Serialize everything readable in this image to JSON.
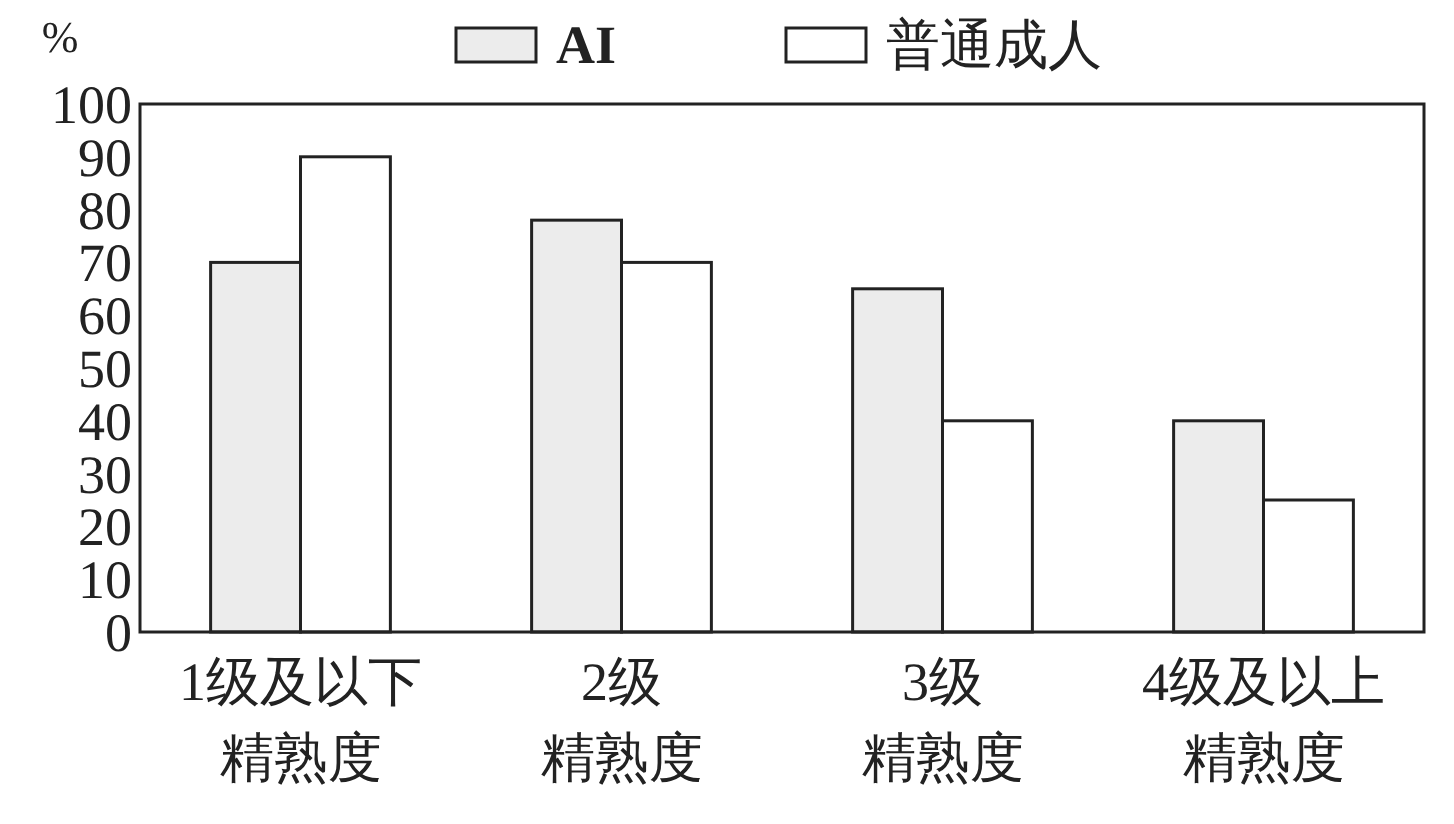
{
  "chart_data": {
    "type": "bar",
    "ylabel": "%",
    "categories": [
      "1级及以下精熟度",
      "2级精熟度",
      "3级精熟度",
      "4级及以上精熟度"
    ],
    "series": [
      {
        "name": "AI",
        "color": "#ececec",
        "values": [
          70,
          78,
          65,
          40
        ]
      },
      {
        "name": "普通成人",
        "color": "#ffffff",
        "values": [
          90,
          70,
          40,
          25
        ]
      }
    ],
    "ylim": [
      0,
      100
    ],
    "yticks": [
      0,
      10,
      20,
      30,
      40,
      50,
      60,
      70,
      80,
      90,
      100
    ],
    "grid": false,
    "legend": "top"
  }
}
